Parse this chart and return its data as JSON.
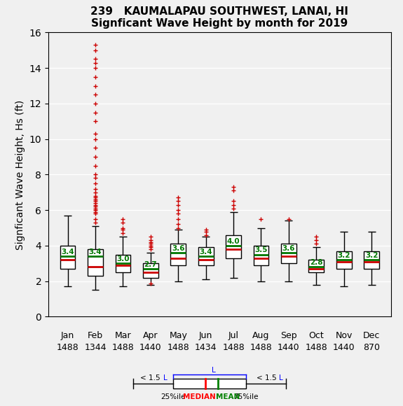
{
  "title1": "239   KAUMALAPAU SOUTHWEST, LANAI, HI",
  "title2": "Signficant Wave Height by month for 2019",
  "ylabel": "Signficant Wave Height, Hs (ft)",
  "months": [
    "Jan",
    "Feb",
    "Mar",
    "Apr",
    "May",
    "Jun",
    "Jul",
    "Aug",
    "Sep",
    "Oct",
    "Nov",
    "Dec"
  ],
  "counts": [
    "1488",
    "1344",
    "1488",
    "1440",
    "1488",
    "1434",
    "1488",
    "1488",
    "1440",
    "1488",
    "1440",
    "870"
  ],
  "ylim": [
    0,
    16
  ],
  "yticks": [
    0,
    2,
    4,
    6,
    8,
    10,
    12,
    14,
    16
  ],
  "background_color": "#f0f0f0",
  "plot_background": "#f0f0f0",
  "box_facecolor": "white",
  "median_color": "#cc0000",
  "mean_color": "#007700",
  "whisker_color": "black",
  "flier_color": "#cc0000",
  "box_edge_color": "black",
  "box_stats": [
    {
      "month": "Jan",
      "q1": 2.7,
      "median": 3.2,
      "mean": 3.4,
      "q3": 4.0,
      "whislo": 1.7,
      "whishi": 5.7,
      "fliers_high": [],
      "fliers_low": []
    },
    {
      "month": "Feb",
      "q1": 2.3,
      "median": 2.8,
      "mean": 3.4,
      "q3": 3.8,
      "whislo": 1.5,
      "whishi": 5.1,
      "fliers_high": [
        5.3,
        5.5,
        5.8,
        5.9,
        6.0,
        6.1,
        6.2,
        6.3,
        6.4,
        6.5,
        6.6,
        6.7,
        6.8,
        7.0,
        7.2,
        7.5,
        7.8,
        8.0,
        8.5,
        9.0,
        9.5,
        10.0,
        10.3,
        11.0,
        11.5,
        12.0,
        12.5,
        13.0,
        13.5,
        14.0,
        14.3,
        14.5,
        15.0,
        15.3
      ],
      "fliers_low": []
    },
    {
      "month": "Mar",
      "q1": 2.5,
      "median": 2.9,
      "mean": 3.0,
      "q3": 3.5,
      "whislo": 1.7,
      "whishi": 4.5,
      "fliers_high": [
        4.7,
        4.9,
        5.0,
        5.3,
        5.5
      ],
      "fliers_low": []
    },
    {
      "month": "Apr",
      "q1": 2.2,
      "median": 2.5,
      "mean": 2.7,
      "q3": 3.0,
      "whislo": 1.8,
      "whishi": 3.6,
      "fliers_high": [
        3.8,
        3.9,
        4.0,
        4.1,
        4.2,
        4.3,
        4.5
      ],
      "fliers_low": [
        1.85
      ]
    },
    {
      "month": "May",
      "q1": 2.9,
      "median": 3.3,
      "mean": 3.6,
      "q3": 4.1,
      "whislo": 2.0,
      "whishi": 4.9,
      "fliers_high": [
        5.0,
        5.2,
        5.5,
        5.8,
        6.0,
        6.3,
        6.5,
        6.7
      ],
      "fliers_low": []
    },
    {
      "month": "Jun",
      "q1": 2.9,
      "median": 3.2,
      "mean": 3.4,
      "q3": 3.9,
      "whislo": 2.1,
      "whishi": 4.5,
      "fliers_high": [
        4.6,
        4.8,
        4.9
      ],
      "fliers_low": []
    },
    {
      "month": "Jul",
      "q1": 3.3,
      "median": 3.8,
      "mean": 4.0,
      "q3": 4.6,
      "whislo": 2.2,
      "whishi": 5.9,
      "fliers_high": [
        6.1,
        6.3,
        6.5,
        7.1,
        7.3
      ],
      "fliers_low": []
    },
    {
      "month": "Aug",
      "q1": 2.9,
      "median": 3.3,
      "mean": 3.5,
      "q3": 4.0,
      "whislo": 2.0,
      "whishi": 5.0,
      "fliers_high": [
        5.5
      ],
      "fliers_low": []
    },
    {
      "month": "Sep",
      "q1": 3.0,
      "median": 3.4,
      "mean": 3.6,
      "q3": 4.1,
      "whislo": 2.0,
      "whishi": 5.4,
      "fliers_high": [
        5.5
      ],
      "fliers_low": []
    },
    {
      "month": "Oct",
      "q1": 2.5,
      "median": 2.7,
      "mean": 2.8,
      "q3": 3.2,
      "whislo": 1.8,
      "whishi": 3.9,
      "fliers_high": [
        4.1,
        4.3,
        4.5
      ],
      "fliers_low": []
    },
    {
      "month": "Nov",
      "q1": 2.7,
      "median": 3.1,
      "mean": 3.2,
      "q3": 3.7,
      "whislo": 1.7,
      "whishi": 4.8,
      "fliers_high": [],
      "fliers_low": []
    },
    {
      "month": "Dec",
      "q1": 2.7,
      "median": 3.1,
      "mean": 3.2,
      "q3": 3.7,
      "whislo": 1.8,
      "whishi": 4.8,
      "fliers_high": [],
      "fliers_low": []
    }
  ]
}
